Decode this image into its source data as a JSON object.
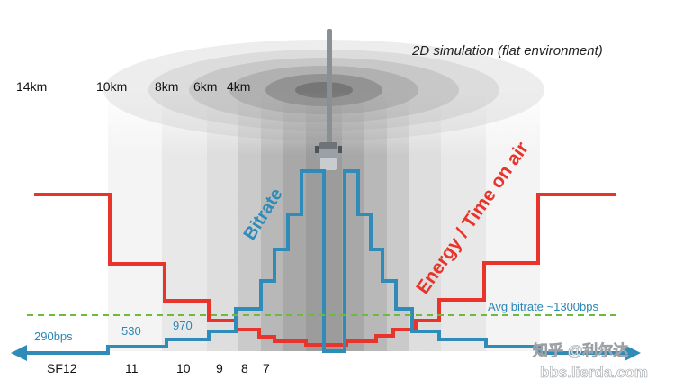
{
  "title": "2D simulation (flat environment)",
  "distance_labels": [
    "14km",
    "10km",
    "8km",
    "6km",
    "4km"
  ],
  "sf_labels": [
    "SF12",
    "11",
    "10",
    "9",
    "8",
    "7"
  ],
  "bitrate_labels": [
    "290bps",
    "530",
    "970"
  ],
  "curve_bitrate_label": "Bitrate",
  "curve_energy_label": "Energy / Time on air",
  "avg_label": "Avg bitrate ~1300bps",
  "watermark": {
    "line1": "知乎 @利尔达",
    "line2": "bbs.lierda.com"
  },
  "colors": {
    "bitrate": "#2f8cb8",
    "energy": "#e8342a",
    "avg_line": "#6dbb3a",
    "antenna": "#8a8f94"
  }
}
